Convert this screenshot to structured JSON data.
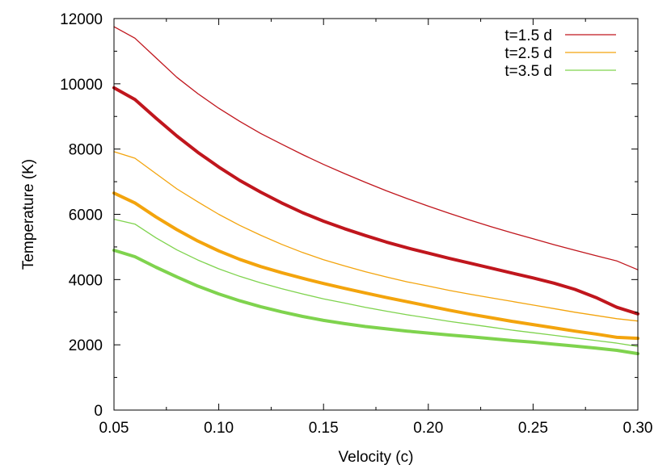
{
  "chart_data": {
    "type": "line",
    "xlabel": "Velocity (c)",
    "ylabel": "Temperature (K)",
    "xlim": [
      0.05,
      0.3
    ],
    "ylim": [
      0,
      12000
    ],
    "xticks": [
      "0.05",
      "0.10",
      "0.15",
      "0.20",
      "0.25",
      "0.30"
    ],
    "yticks": [
      "0",
      "2000",
      "4000",
      "6000",
      "8000",
      "10000",
      "12000"
    ],
    "grid": false,
    "legend_position": "top-right",
    "legend": [
      {
        "label": "t=1.5 d",
        "color": "#c0161d"
      },
      {
        "label": "t=2.5 d",
        "color": "#f3a40d"
      },
      {
        "label": "t=3.5 d",
        "color": "#7fd34e"
      }
    ],
    "x": [
      0.05,
      0.06,
      0.07,
      0.08,
      0.09,
      0.1,
      0.11,
      0.12,
      0.13,
      0.14,
      0.15,
      0.16,
      0.17,
      0.18,
      0.19,
      0.2,
      0.21,
      0.22,
      0.23,
      0.24,
      0.25,
      0.26,
      0.27,
      0.28,
      0.29,
      0.3
    ],
    "series": [
      {
        "time": "t=1.5 d",
        "color": "#c0161d",
        "width": "thin",
        "values": [
          11750,
          11400,
          10800,
          10200,
          9700,
          9250,
          8850,
          8480,
          8150,
          7830,
          7530,
          7250,
          6980,
          6720,
          6480,
          6250,
          6030,
          5820,
          5620,
          5430,
          5250,
          5070,
          4900,
          4730,
          4570,
          4300
        ]
      },
      {
        "time": "t=1.5 d",
        "color": "#c0161d",
        "width": "thick",
        "values": [
          9880,
          9520,
          8950,
          8400,
          7900,
          7450,
          7040,
          6680,
          6350,
          6050,
          5790,
          5560,
          5350,
          5150,
          4970,
          4810,
          4650,
          4500,
          4350,
          4200,
          4050,
          3890,
          3700,
          3450,
          3150,
          2950
        ]
      },
      {
        "time": "t=2.5 d",
        "color": "#f3a40d",
        "width": "thin",
        "values": [
          7920,
          7720,
          7250,
          6780,
          6380,
          6000,
          5660,
          5360,
          5080,
          4830,
          4610,
          4420,
          4240,
          4080,
          3930,
          3800,
          3670,
          3550,
          3440,
          3330,
          3220,
          3110,
          3000,
          2900,
          2800,
          2730
        ]
      },
      {
        "time": "t=2.5 d",
        "color": "#f3a40d",
        "width": "thick",
        "values": [
          6650,
          6350,
          5920,
          5530,
          5180,
          4880,
          4620,
          4400,
          4210,
          4040,
          3880,
          3730,
          3590,
          3450,
          3320,
          3190,
          3060,
          2940,
          2830,
          2720,
          2620,
          2520,
          2420,
          2330,
          2230,
          2200
        ]
      },
      {
        "time": "t=3.5 d",
        "color": "#7fd34e",
        "width": "thin",
        "values": [
          5850,
          5700,
          5280,
          4910,
          4600,
          4330,
          4100,
          3900,
          3720,
          3560,
          3410,
          3280,
          3150,
          3030,
          2920,
          2820,
          2720,
          2630,
          2540,
          2450,
          2370,
          2290,
          2210,
          2130,
          2050,
          1950
        ]
      },
      {
        "time": "t=3.5 d",
        "color": "#7fd34e",
        "width": "thick",
        "values": [
          4900,
          4700,
          4380,
          4080,
          3800,
          3560,
          3350,
          3170,
          3010,
          2870,
          2750,
          2650,
          2560,
          2490,
          2420,
          2360,
          2300,
          2250,
          2190,
          2130,
          2080,
          2020,
          1960,
          1900,
          1830,
          1730
        ]
      }
    ]
  }
}
